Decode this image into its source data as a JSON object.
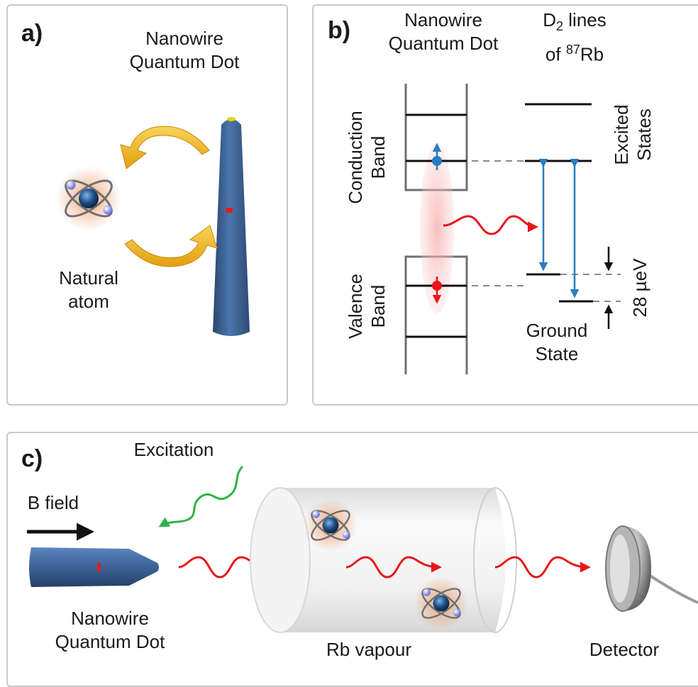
{
  "panel_a": {
    "label": "a)",
    "qd_title_1": "Nanowire",
    "qd_title_2": "Quantum Dot",
    "atom_label_1": "Natural",
    "atom_label_2": "atom"
  },
  "panel_b": {
    "label": "b)",
    "qd_title_1": "Nanowire",
    "qd_title_2": "Quantum Dot",
    "rb_title_1": "D",
    "rb_title_sub": "2",
    "rb_title_2": " lines",
    "rb_title_3": "of ",
    "rb_title_sup": "87",
    "rb_title_4": "Rb",
    "conduction_1": "Conduction",
    "conduction_2": "Band",
    "valence_1": "Valence",
    "valence_2": "Band",
    "excited_1": "Excited",
    "excited_2": "States",
    "ground_1": "Ground",
    "ground_2": "State",
    "splitting": "28 µeV"
  },
  "panel_c": {
    "label": "c)",
    "excitation": "Excitation",
    "bfield": "B field",
    "qd_1": "Nanowire",
    "qd_2": "Quantum Dot",
    "vapour": "Rb vapour",
    "detector": "Detector"
  },
  "colors": {
    "wire_blue": "#3d5f8f",
    "photon_red": "#e8161b",
    "transition_blue": "#2a7cc1",
    "arrow_gold": "#f3b81b",
    "excitation_green": "#2fb34a"
  }
}
